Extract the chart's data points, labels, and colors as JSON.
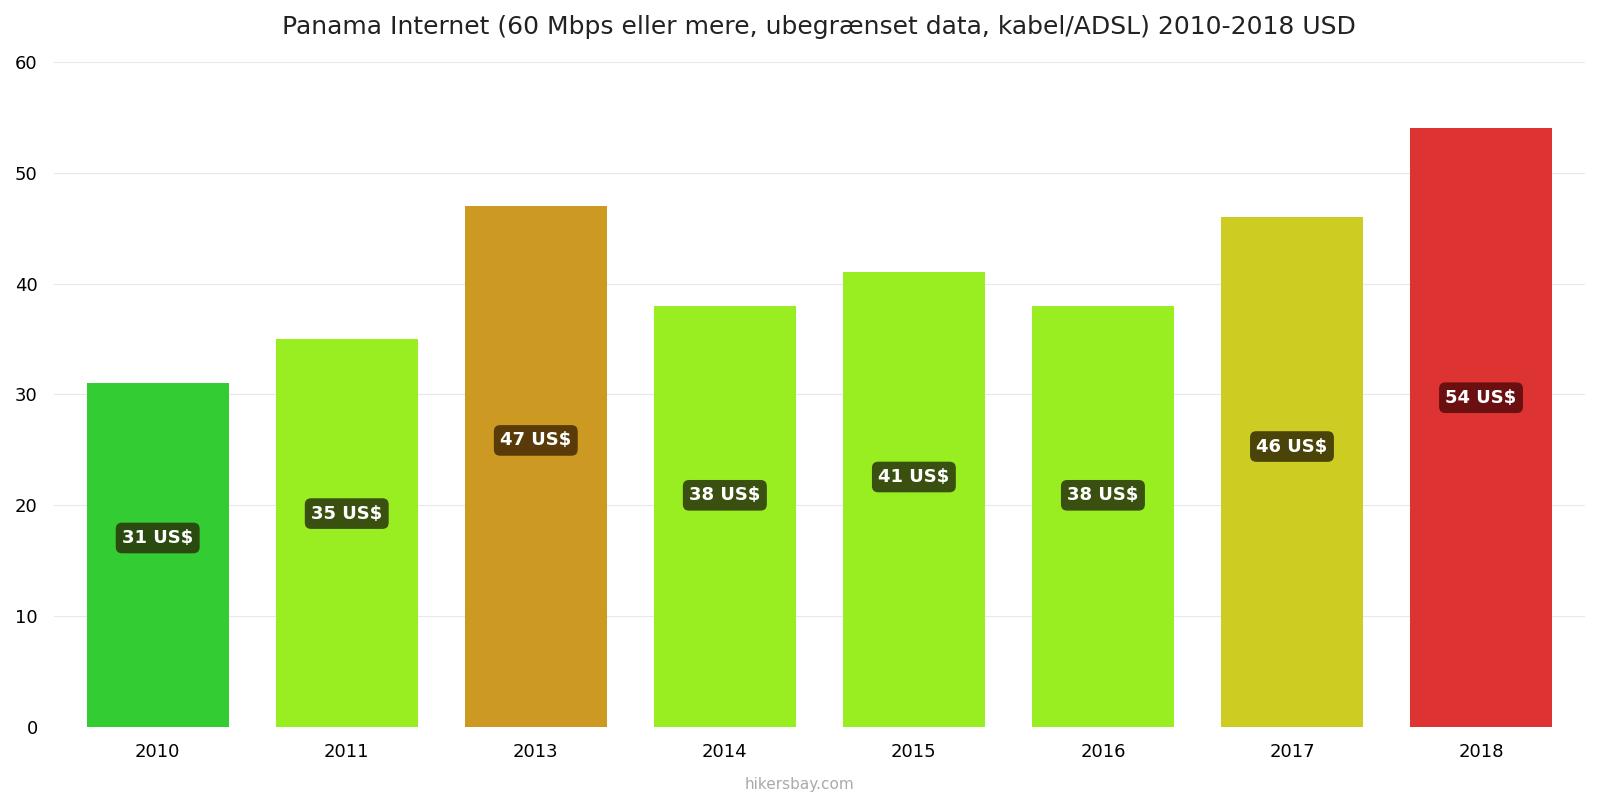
{
  "title": "Panama Internet (60 Mbps eller mere, ubegrænset data, kabel/ADSL) 2010-2018 USD",
  "years": [
    "2010",
    "2011",
    "2013",
    "2014",
    "2015",
    "2016",
    "2017",
    "2018"
  ],
  "values": [
    31,
    35,
    47,
    38,
    41,
    38,
    46,
    54
  ],
  "bar_colors": [
    "#33cc33",
    "#99ee22",
    "#cc9922",
    "#99ee22",
    "#99ee22",
    "#99ee22",
    "#cccc22",
    "#dd3333"
  ],
  "label_bg_colors": [
    "#2a4a10",
    "#3a5010",
    "#5a3a08",
    "#3a5010",
    "#3a5010",
    "#3a5010",
    "#4a4408",
    "#6a1010"
  ],
  "labels": [
    "31 US$",
    "35 US$",
    "47 US$",
    "38 US$",
    "41 US$",
    "38 US$",
    "46 US$",
    "54 US$"
  ],
  "label_y_fractions": [
    0.55,
    0.55,
    0.55,
    0.55,
    0.55,
    0.55,
    0.55,
    0.55
  ],
  "ylim": [
    0,
    60
  ],
  "yticks": [
    0,
    10,
    20,
    30,
    40,
    50,
    60
  ],
  "background_color": "#ffffff",
  "grid_color": "#e8e8e8",
  "watermark": "hikersbay.com",
  "title_fontsize": 18,
  "bar_width": 0.75
}
